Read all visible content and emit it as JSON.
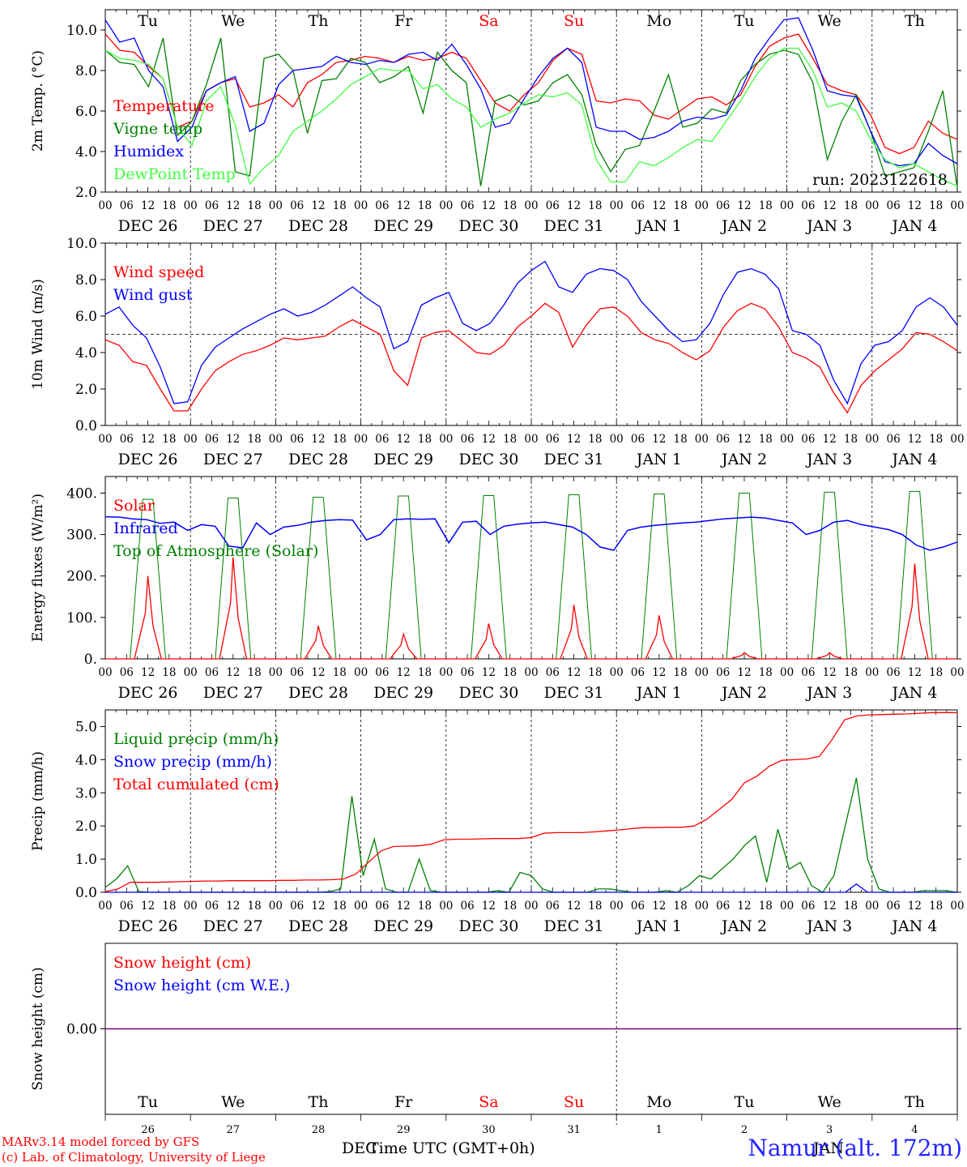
{
  "chart_data": [
    {
      "type": "line",
      "ylabel": "2m Temp. (°C)",
      "ylim": [
        2,
        11
      ],
      "yticks": [
        "2.0",
        "4.0",
        "6.0",
        "8.0",
        "10.0"
      ],
      "run_label": "run: 2023122618",
      "series": [
        {
          "name": "Temperature",
          "color": "#ff0000",
          "values": [
            9.8,
            9.0,
            8.9,
            8.2,
            7.6,
            5.2,
            5.5,
            7.0,
            7.4,
            7.6,
            6.2,
            6.4,
            6.8,
            6.2,
            7.4,
            7.8,
            8.4,
            8.5,
            8.7,
            8.6,
            8.4,
            8.7,
            8.5,
            8.6,
            8.9,
            8.6,
            7.5,
            6.4,
            6.0,
            6.8,
            7.4,
            8.5,
            9.1,
            8.8,
            6.5,
            6.4,
            6.6,
            6.5,
            5.8,
            5.6,
            6.1,
            6.6,
            6.7,
            6.3,
            6.8,
            8.2,
            9.2,
            9.6,
            9.8,
            8.6,
            7.3,
            7.0,
            6.8,
            5.8,
            4.2,
            3.9,
            4.2,
            5.5,
            4.9,
            4.6
          ]
        },
        {
          "name": "Vigne temp",
          "color": "#008000",
          "values": [
            9.0,
            8.4,
            8.3,
            7.2,
            9.6,
            4.8,
            5.5,
            7.3,
            9.6,
            3.0,
            2.8,
            8.6,
            8.8,
            8.0,
            4.9,
            7.5,
            7.6,
            8.6,
            8.4,
            7.4,
            7.7,
            8.2,
            5.9,
            8.9,
            8.0,
            7.4,
            2.3,
            6.5,
            6.8,
            6.3,
            6.5,
            7.4,
            7.8,
            6.8,
            4.3,
            3.0,
            4.1,
            4.3,
            6.0,
            7.8,
            5.2,
            5.4,
            6.1,
            5.9,
            7.5,
            8.3,
            8.8,
            9.0,
            8.8,
            7.4,
            3.6,
            5.5,
            6.8,
            5.0,
            2.8,
            3.0,
            3.2,
            5.0,
            7.0,
            2.2
          ]
        },
        {
          "name": "Humidex",
          "color": "#0000ff",
          "values": [
            10.5,
            9.4,
            9.6,
            8.0,
            7.2,
            4.5,
            5.2,
            7.0,
            7.4,
            7.7,
            5.0,
            5.4,
            7.3,
            8.0,
            8.1,
            8.2,
            8.7,
            8.4,
            8.3,
            8.5,
            8.4,
            8.8,
            8.9,
            8.5,
            9.3,
            8.3,
            7.1,
            5.2,
            5.4,
            6.6,
            7.7,
            8.6,
            9.1,
            8.4,
            5.2,
            5.0,
            5.0,
            4.6,
            4.7,
            5.0,
            5.5,
            5.7,
            5.6,
            5.8,
            7.0,
            8.6,
            9.6,
            10.5,
            10.6,
            9.0,
            7.0,
            6.8,
            6.7,
            5.0,
            3.5,
            3.3,
            3.4,
            4.4,
            3.8,
            3.4
          ]
        },
        {
          "name": "DewPoint Temp",
          "color": "#40ff40",
          "values": [
            9.0,
            8.6,
            8.5,
            8.3,
            7.6,
            5.2,
            4.3,
            6.5,
            7.2,
            5.3,
            2.4,
            3.2,
            3.8,
            5.0,
            5.5,
            6.0,
            6.6,
            7.3,
            7.7,
            8.1,
            8.0,
            8.0,
            7.1,
            7.3,
            6.6,
            6.2,
            5.2,
            5.6,
            5.9,
            6.4,
            6.8,
            6.7,
            6.9,
            6.3,
            3.6,
            2.5,
            2.5,
            3.5,
            3.3,
            3.7,
            4.2,
            4.6,
            4.5,
            5.5,
            6.5,
            7.7,
            8.6,
            9.1,
            9.1,
            8.0,
            6.2,
            6.4,
            6.0,
            4.6,
            3.6,
            3.2,
            3.4,
            3.0,
            2.6,
            2.3
          ]
        }
      ]
    },
    {
      "type": "line",
      "ylabel": "10m Wind (m/s)",
      "ylim": [
        0,
        10
      ],
      "yticks": [
        "0.0",
        "2.0",
        "4.0",
        "6.0",
        "8.0",
        "10.0"
      ],
      "reference_line": 5.0,
      "series": [
        {
          "name": "Wind speed",
          "color": "#ff0000",
          "values": [
            4.7,
            4.4,
            3.5,
            3.3,
            2.0,
            0.8,
            0.8,
            2.0,
            3.0,
            3.5,
            3.9,
            4.1,
            4.4,
            4.8,
            4.7,
            4.8,
            4.9,
            5.4,
            5.8,
            5.4,
            5.0,
            3.0,
            2.2,
            4.8,
            5.1,
            5.2,
            4.6,
            4.0,
            3.9,
            4.4,
            5.4,
            6.0,
            6.7,
            6.2,
            4.3,
            5.5,
            6.4,
            6.5,
            6.0,
            5.1,
            4.7,
            4.5,
            4.0,
            3.6,
            4.1,
            5.4,
            6.3,
            6.7,
            6.4,
            5.4,
            4.0,
            3.7,
            3.2,
            1.8,
            0.7,
            2.2,
            3.0,
            3.6,
            4.2,
            5.1,
            5.0,
            4.6,
            4.1
          ]
        },
        {
          "name": "Wind gust",
          "color": "#0000ff",
          "values": [
            6.1,
            6.5,
            5.5,
            4.8,
            3.2,
            1.2,
            1.3,
            3.3,
            4.3,
            4.8,
            5.3,
            5.7,
            6.1,
            6.4,
            6.0,
            6.2,
            6.6,
            7.1,
            7.6,
            7.0,
            6.5,
            4.2,
            4.6,
            6.6,
            7.0,
            7.3,
            5.6,
            5.2,
            5.6,
            6.6,
            7.8,
            8.5,
            9.0,
            7.6,
            7.3,
            8.3,
            8.6,
            8.5,
            8.0,
            6.8,
            6.0,
            5.2,
            4.6,
            4.7,
            5.6,
            7.2,
            8.4,
            8.6,
            8.3,
            7.5,
            5.2,
            5.0,
            4.4,
            2.5,
            1.2,
            3.4,
            4.4,
            4.6,
            5.2,
            6.5,
            7.0,
            6.5,
            5.5
          ]
        }
      ]
    },
    {
      "type": "line",
      "ylabel": "Energy fluxes (W/m²)",
      "ylim": [
        0,
        440
      ],
      "yticks": [
        "0.",
        "100.",
        "200.",
        "300.",
        "400."
      ],
      "series": [
        {
          "name": "Solar",
          "color": "#ff0000",
          "daily_peaks": [
            200,
            245,
            80,
            60,
            85,
            130,
            105,
            15,
            15,
            230
          ]
        },
        {
          "name": "Infrared",
          "color": "#0000ff",
          "values": [
            343,
            342,
            338,
            336,
            327,
            330,
            310,
            324,
            320,
            272,
            268,
            328,
            300,
            318,
            322,
            330,
            334,
            336,
            335,
            287,
            300,
            336,
            338,
            337,
            338,
            280,
            330,
            332,
            300,
            320,
            325,
            328,
            330,
            324,
            318,
            300,
            270,
            262,
            310,
            318,
            322,
            325,
            328,
            330,
            334,
            338,
            340,
            342,
            340,
            334,
            328,
            300,
            310,
            330,
            334,
            324,
            318,
            312,
            300,
            275,
            262,
            270,
            282
          ]
        },
        {
          "name": "Top of Atmosphere (Solar)",
          "color": "#008000",
          "daily_peaks": [
            385,
            388,
            390,
            393,
            394,
            396,
            398,
            400,
            402,
            404
          ]
        }
      ]
    },
    {
      "type": "line",
      "ylabel": "Precip (mm/h)",
      "ylim": [
        0,
        5.5
      ],
      "yticks": [
        "0.0",
        "1.0",
        "2.0",
        "3.0",
        "4.0",
        "5.0"
      ],
      "series": [
        {
          "name": "Liquid precip (mm/h)",
          "color": "#008000",
          "values": [
            0.15,
            0.4,
            0.8,
            0.02,
            0.0,
            0.0,
            0.0,
            0.0,
            0.0,
            0.0,
            0.0,
            0.0,
            0.0,
            0.0,
            0.0,
            0.0,
            0.0,
            0.0,
            0.0,
            0.0,
            0.02,
            0.1,
            2.9,
            0.5,
            1.6,
            0.1,
            0.0,
            0.0,
            1.0,
            0.05,
            0.0,
            0.0,
            0.0,
            0.0,
            0.0,
            0.05,
            0.0,
            0.6,
            0.5,
            0.1,
            0.0,
            0.0,
            0.0,
            0.0,
            0.1,
            0.1,
            0.05,
            0.0,
            0.0,
            0.0,
            0.05,
            0.0,
            0.2,
            0.5,
            0.4,
            0.7,
            1.0,
            1.4,
            1.7,
            0.3,
            1.9,
            0.7,
            0.9,
            0.2,
            0.0,
            0.5,
            2.0,
            3.45,
            1.0,
            0.1,
            0.0,
            0.0,
            0.0,
            0.05,
            0.05,
            0.05,
            0.0
          ]
        },
        {
          "name": "Snow precip (mm/h)",
          "color": "#0000ff",
          "values": [
            0,
            0,
            0,
            0,
            0,
            0,
            0,
            0,
            0,
            0,
            0,
            0,
            0,
            0,
            0,
            0,
            0,
            0,
            0,
            0,
            0,
            0,
            0,
            0,
            0,
            0,
            0,
            0,
            0,
            0,
            0,
            0,
            0,
            0,
            0,
            0,
            0,
            0,
            0,
            0,
            0,
            0,
            0,
            0,
            0,
            0,
            0,
            0,
            0,
            0,
            0,
            0,
            0,
            0,
            0,
            0,
            0,
            0,
            0,
            0,
            0,
            0,
            0,
            0,
            0,
            0,
            0,
            0.25,
            0,
            0,
            0,
            0,
            0,
            0,
            0,
            0,
            0
          ]
        },
        {
          "name": "Total cumulated (cm)",
          "color": "#ff0000",
          "values": [
            0.02,
            0.1,
            0.3,
            0.3,
            0.3,
            0.31,
            0.32,
            0.33,
            0.34,
            0.34,
            0.35,
            0.35,
            0.35,
            0.35,
            0.36,
            0.36,
            0.37,
            0.37,
            0.38,
            0.4,
            0.55,
            0.9,
            1.25,
            1.38,
            1.39,
            1.4,
            1.45,
            1.58,
            1.6,
            1.6,
            1.61,
            1.62,
            1.62,
            1.62,
            1.65,
            1.78,
            1.8,
            1.8,
            1.8,
            1.82,
            1.85,
            1.88,
            1.92,
            1.95,
            1.95,
            1.96,
            1.96,
            2.0,
            2.2,
            2.5,
            2.8,
            3.3,
            3.5,
            3.8,
            3.98,
            4.0,
            4.02,
            4.1,
            4.6,
            5.2,
            5.32,
            5.35,
            5.36,
            5.37,
            5.38,
            5.4,
            5.42,
            5.42,
            5.42
          ]
        }
      ]
    },
    {
      "type": "line",
      "ylabel": "Snow height (cm)",
      "yticks": [
        "0.00"
      ],
      "series": [
        {
          "name": "Snow height (cm)",
          "color": "#ff0000",
          "values": [
            0,
            0
          ]
        },
        {
          "name": "Snow height (cm W.E.)",
          "color": "#0000ff",
          "values": [
            0,
            0
          ]
        }
      ]
    }
  ],
  "axis": {
    "weekdays": [
      "Tu",
      "We",
      "Th",
      "Fr",
      "Sa",
      "Su",
      "Mo",
      "Tu",
      "We",
      "Th"
    ],
    "weekday_colors": [
      "#000000",
      "#000000",
      "#000000",
      "#000000",
      "#ff0000",
      "#ff0000",
      "#000000",
      "#000000",
      "#000000",
      "#000000"
    ],
    "hour_ticks": [
      "00",
      "06",
      "12",
      "18"
    ],
    "date_labels": [
      "DEC 26",
      "DEC 27",
      "DEC 28",
      "DEC 29",
      "DEC 30",
      "DEC 31",
      "JAN  1",
      "JAN  2",
      "JAN  3",
      "JAN  4"
    ],
    "day_numbers": [
      "26",
      "27",
      "28",
      "29",
      "30",
      "31",
      "1",
      "2",
      "3",
      "4"
    ],
    "month_dec": "DEC",
    "month_jan": "JAN",
    "xlabel": "Time UTC (GMT+0h)"
  },
  "footer": {
    "credit_line1": "MARv3.14 model forced by GFS",
    "credit_line2": "(c) Lab. of Climatology, University of Liege",
    "station": "Namur (alt. 172m)"
  }
}
